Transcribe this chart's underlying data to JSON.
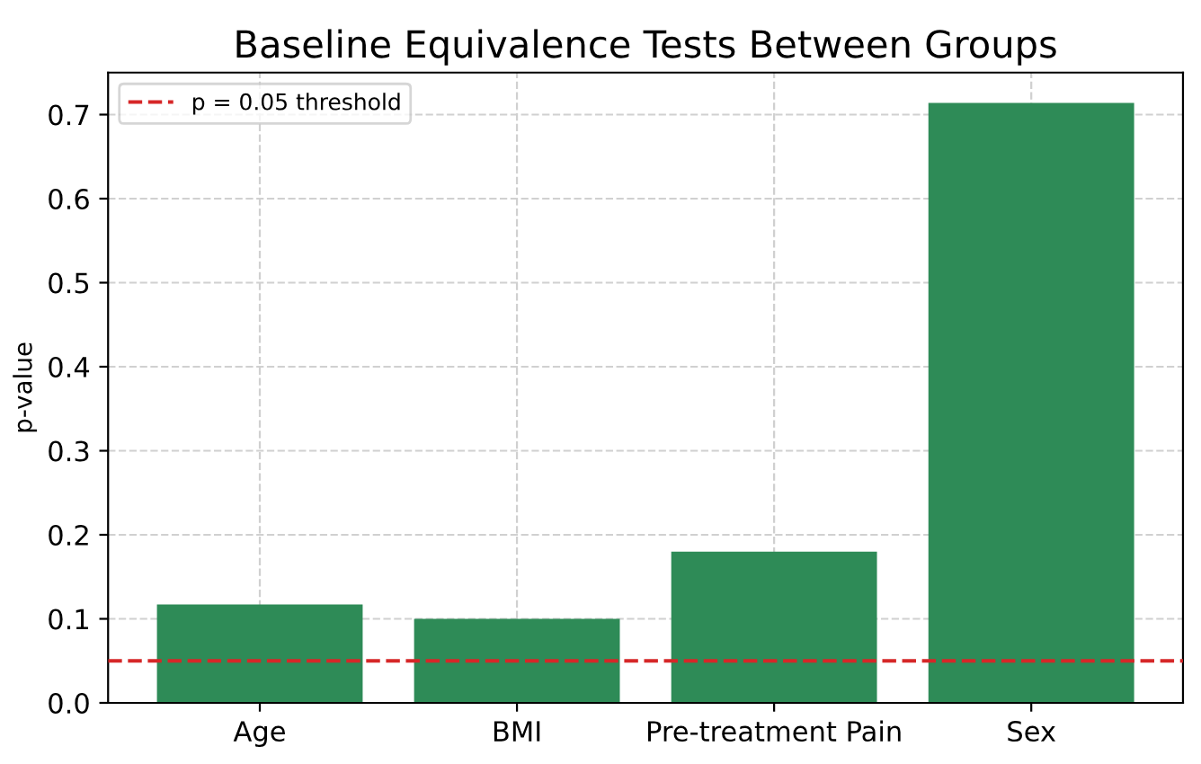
{
  "chart_data": {
    "type": "bar",
    "title": "Baseline Equivalence Tests Between Groups",
    "ylabel": "p-value",
    "categories": [
      "Age",
      "BMI",
      "Pre-treatment Pain",
      "Sex"
    ],
    "values": [
      0.117,
      0.1,
      0.18,
      0.714
    ],
    "color": "#2e8b57",
    "ylim": [
      0,
      0.75
    ],
    "yticks": [
      {
        "value": 0,
        "label": "0.0"
      },
      0.1,
      0.2,
      0.3,
      0.4,
      0.5,
      0.6,
      0.7
    ],
    "ref_lines": [
      {
        "axis": "y",
        "value": 0.05,
        "label": "p = 0.05 threshold",
        "color": "#d62728",
        "line_style": "dashed"
      }
    ],
    "grid": true,
    "legend": "top left"
  }
}
